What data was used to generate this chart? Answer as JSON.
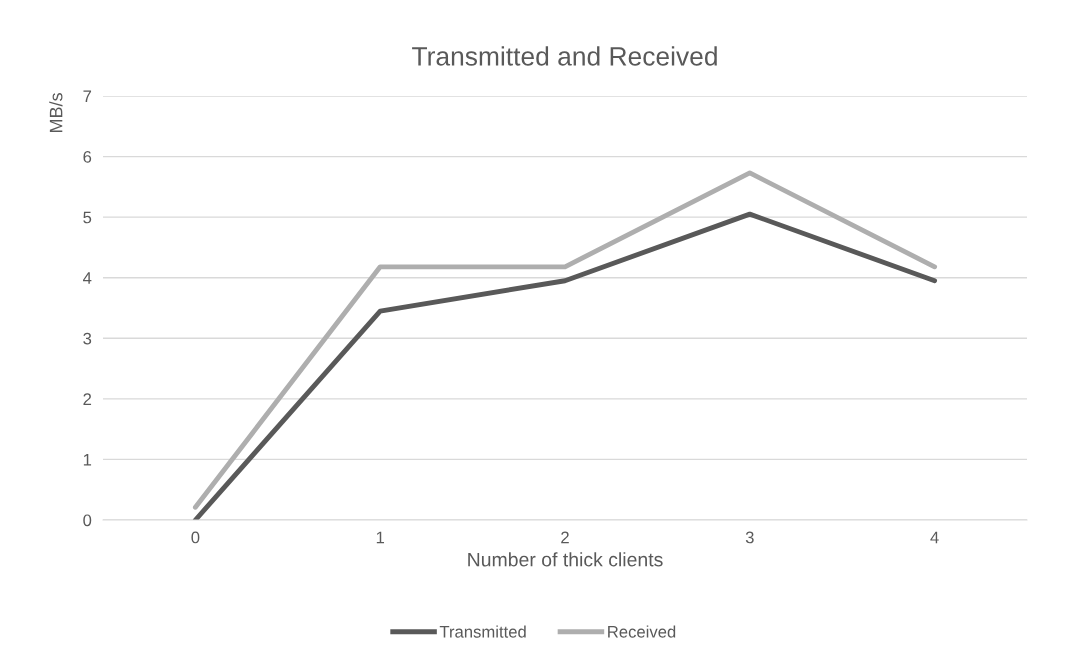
{
  "chart_data": {
    "type": "line",
    "title": "Transmitted and Received",
    "xlabel": "Number of thick clients",
    "ylabel": "MB/s",
    "categories": [
      "0",
      "1",
      "2",
      "3",
      "4"
    ],
    "series": [
      {
        "name": "Transmitted",
        "color": "#595959",
        "values": [
          0,
          3.45,
          3.95,
          5.05,
          3.95
        ]
      },
      {
        "name": "Received",
        "color": "#aeaeae",
        "values": [
          0.21,
          4.18,
          4.18,
          5.73,
          4.18
        ]
      }
    ],
    "ylim": [
      0,
      7
    ],
    "yticks": [
      0,
      1,
      2,
      3,
      4,
      5,
      6,
      7
    ],
    "grid": "y",
    "legend": "bottom",
    "marker": "none",
    "line_style": "solid"
  }
}
